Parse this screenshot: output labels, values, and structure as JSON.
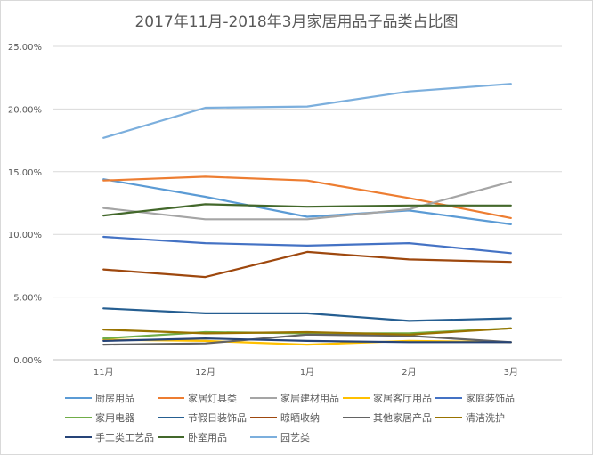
{
  "chart_data": {
    "type": "line",
    "title": "2017年11月-2018年3月家居用品子品类占比图",
    "xlabel": "",
    "ylabel": "",
    "categories": [
      "11月",
      "12月",
      "1月",
      "2月",
      "3月"
    ],
    "y_ticks": [
      "0.00%",
      "5.00%",
      "10.00%",
      "15.00%",
      "20.00%",
      "25.00%"
    ],
    "ylim": [
      0,
      25
    ],
    "grid": true,
    "legend_position": "bottom",
    "series": [
      {
        "name": "厨房用品",
        "color": "#5b9bd5",
        "values": [
          14.4,
          13.0,
          11.4,
          11.9,
          10.8
        ]
      },
      {
        "name": "家居灯具类",
        "color": "#ed7d31",
        "values": [
          14.3,
          14.6,
          14.3,
          12.9,
          11.3
        ]
      },
      {
        "name": "家居建材用品",
        "color": "#a5a5a5",
        "values": [
          12.1,
          11.2,
          11.2,
          12.0,
          14.2
        ]
      },
      {
        "name": "家居客厅用品",
        "color": "#ffc000",
        "values": [
          1.6,
          1.5,
          1.2,
          1.5,
          1.4
        ]
      },
      {
        "name": "家庭装饰品",
        "color": "#4472c4",
        "values": [
          9.8,
          9.3,
          9.1,
          9.3,
          8.5
        ]
      },
      {
        "name": "家用电器",
        "color": "#70ad47",
        "values": [
          1.7,
          2.2,
          2.1,
          2.1,
          2.5
        ]
      },
      {
        "name": "节假日装饰品",
        "color": "#255e91",
        "values": [
          4.1,
          3.7,
          3.7,
          3.1,
          3.3
        ]
      },
      {
        "name": "晾晒收纳",
        "color": "#9e480e",
        "values": [
          7.2,
          6.6,
          8.6,
          8.0,
          7.8
        ]
      },
      {
        "name": "其他家居产品",
        "color": "#636363",
        "values": [
          1.2,
          1.3,
          2.0,
          1.9,
          1.4
        ]
      },
      {
        "name": "清洁洗护",
        "color": "#997300",
        "values": [
          2.4,
          2.1,
          2.2,
          2.0,
          2.5
        ]
      },
      {
        "name": "手工类工艺品",
        "color": "#264478",
        "values": [
          1.5,
          1.7,
          1.5,
          1.4,
          1.4
        ]
      },
      {
        "name": "卧室用品",
        "color": "#43682b",
        "values": [
          11.5,
          12.4,
          12.2,
          12.3,
          12.3
        ]
      },
      {
        "name": "园艺类",
        "color": "#7cafdd",
        "values": [
          17.7,
          20.1,
          20.2,
          21.4,
          22.0
        ]
      }
    ]
  }
}
